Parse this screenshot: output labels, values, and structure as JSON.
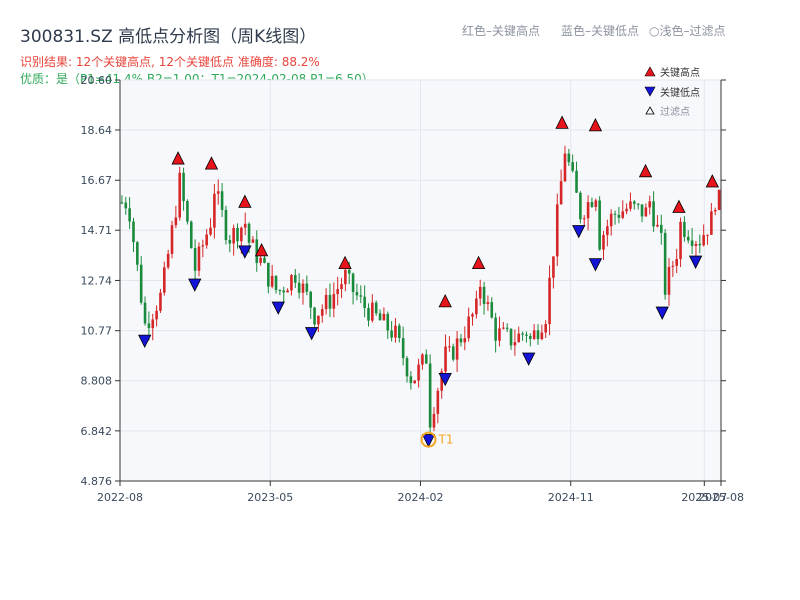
{
  "header": {
    "title": "300831.SZ 高低点分析图（周K线图）",
    "result_line": "识别结果: 12个关键高点, 12个关键低点  准确度: 88.2%",
    "quality_line": "优质：是（P1=41.4%  B2=1.00；T1=2024-02-08 P1=6.50）",
    "hint_high": "红色–关键高点",
    "hint_low": "蓝色–关键低点",
    "hint_filtered": "○浅色–过滤点"
  },
  "legend": {
    "high": "关键高点",
    "low": "关键低点",
    "filtered": "过滤点"
  },
  "colors": {
    "up": "#d62728",
    "down": "#1a8a3c",
    "high_marker": "#e8141c",
    "low_marker": "#1414d6",
    "t1": "#f5a623",
    "plot_bg": "#f7f8fb"
  },
  "chart_data": {
    "type": "candlestick",
    "ylim": [
      4.876,
      20.6
    ],
    "y_ticks": [
      "20.60",
      "18.64",
      "16.67",
      "14.71",
      "12.74",
      "10.77",
      "8.808",
      "6.842",
      "4.876"
    ],
    "x_ticks": [
      "2022-08",
      "2023-05",
      "2024-02",
      "2024-11",
      "2025-07",
      "2025-08"
    ],
    "x_range_months": [
      "2022-08",
      "2025-08"
    ],
    "grid": true,
    "legend_position": "top-right",
    "key_highs": [
      {
        "date": "2022-11",
        "price": 17.5
      },
      {
        "date": "2023-01",
        "price": 17.3
      },
      {
        "date": "2023-03",
        "price": 15.8
      },
      {
        "date": "2023-04",
        "price": 13.9
      },
      {
        "date": "2023-09",
        "price": 13.4
      },
      {
        "date": "2024-03",
        "price": 11.9
      },
      {
        "date": "2024-05",
        "price": 13.4
      },
      {
        "date": "2024-10",
        "price": 18.9
      },
      {
        "date": "2024-12",
        "price": 18.8
      },
      {
        "date": "2025-03",
        "price": 17.0
      },
      {
        "date": "2025-05",
        "price": 15.6
      },
      {
        "date": "2025-07",
        "price": 16.6
      }
    ],
    "key_lows": [
      {
        "date": "2022-09",
        "price": 10.4
      },
      {
        "date": "2022-12",
        "price": 12.6
      },
      {
        "date": "2023-03",
        "price": 13.9
      },
      {
        "date": "2023-05",
        "price": 11.7
      },
      {
        "date": "2023-07",
        "price": 10.7
      },
      {
        "date": "2024-02",
        "price": 6.5
      },
      {
        "date": "2024-03",
        "price": 8.9
      },
      {
        "date": "2024-08",
        "price": 9.7
      },
      {
        "date": "2024-11",
        "price": 14.7
      },
      {
        "date": "2024-12",
        "price": 13.4
      },
      {
        "date": "2025-04",
        "price": 11.5
      },
      {
        "date": "2025-06",
        "price": 13.5
      }
    ],
    "t1_label": "T1",
    "price_path": [
      [
        "2022-08",
        15.8
      ],
      [
        "2022-09",
        11.0
      ],
      [
        "2022-10",
        12.2
      ],
      [
        "2022-11",
        16.2
      ],
      [
        "2022-12",
        13.2
      ],
      [
        "2023-01",
        15.2
      ],
      [
        "2023-02",
        14.4
      ],
      [
        "2023-03",
        15.0
      ],
      [
        "2023-04",
        13.4
      ],
      [
        "2023-05",
        12.2
      ],
      [
        "2023-06",
        13.0
      ],
      [
        "2023-07",
        11.7
      ],
      [
        "2023-08",
        11.9
      ],
      [
        "2023-09",
        12.9
      ],
      [
        "2023-10",
        11.8
      ],
      [
        "2023-11",
        11.2
      ],
      [
        "2023-12",
        10.6
      ],
      [
        "2024-01",
        8.8
      ],
      [
        "2024-02",
        9.9
      ],
      [
        "2024-03",
        9.8
      ],
      [
        "2024-04",
        10.6
      ],
      [
        "2024-05",
        11.8
      ],
      [
        "2024-06",
        10.7
      ],
      [
        "2024-07",
        10.4
      ],
      [
        "2024-08",
        10.8
      ],
      [
        "2024-09",
        11.4
      ],
      [
        "2024-10",
        17.0
      ],
      [
        "2024-11",
        15.6
      ],
      [
        "2024-12",
        16.2
      ],
      [
        "2025-01",
        15.3
      ],
      [
        "2025-02",
        15.6
      ],
      [
        "2025-03",
        15.4
      ],
      [
        "2025-04",
        14.0
      ],
      [
        "2025-05",
        14.2
      ],
      [
        "2025-06",
        14.4
      ],
      [
        "2025-07",
        15.2
      ],
      [
        "2025-08",
        15.6
      ]
    ]
  }
}
